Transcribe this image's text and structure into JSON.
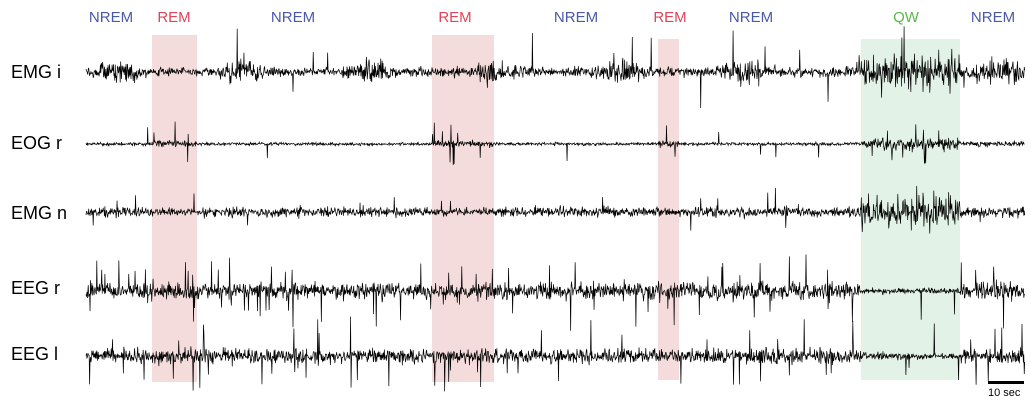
{
  "colors": {
    "nrem": "#4a5aa8",
    "rem": "#e0435a",
    "qw": "#58b84a",
    "rem_band": "#f5dcdc",
    "qw_band": "#e2f2e6",
    "trace": "#000000"
  },
  "stages": [
    {
      "label": "NREM",
      "type": "nrem"
    },
    {
      "label": "REM",
      "type": "rem"
    },
    {
      "label": "NREM",
      "type": "nrem"
    },
    {
      "label": "REM",
      "type": "rem"
    },
    {
      "label": "NREM",
      "type": "nrem"
    },
    {
      "label": "REM",
      "type": "rem"
    },
    {
      "label": "NREM",
      "type": "nrem"
    },
    {
      "label": "QW",
      "type": "qw"
    },
    {
      "label": "NREM",
      "type": "nrem"
    }
  ],
  "channels": [
    {
      "label": "EMG i"
    },
    {
      "label": "EOG r"
    },
    {
      "label": "EMG n"
    },
    {
      "label": "EEG r"
    },
    {
      "label": "EEG l"
    }
  ],
  "scale_bar": {
    "label": "10 sec"
  }
}
